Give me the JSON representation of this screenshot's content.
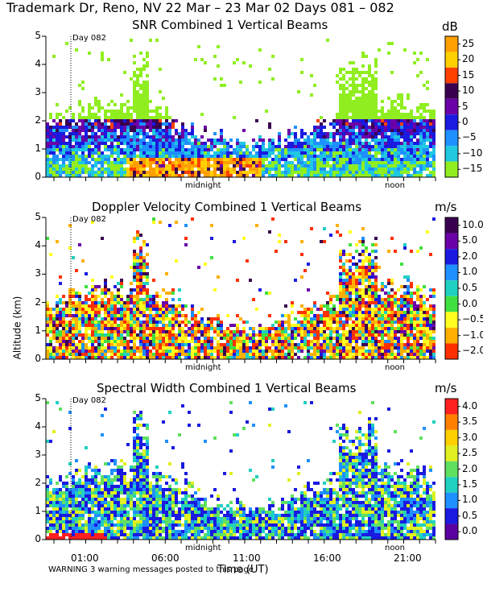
{
  "figure_title": "Trademark Dr, Reno, NV  22 Mar – 23 Mar 02 Days 081 – 082",
  "colors": {
    "background": "#ffffff",
    "text": "#000000"
  },
  "chart_data": [
    {
      "type": "heatmap",
      "title": "SNR Combined 1 Vertical Beams",
      "colorbar_unit": "dB",
      "colorbar_ticks": [
        "25",
        "20",
        "15",
        "10",
        "5",
        "0",
        "−5",
        "−10",
        "−15"
      ],
      "colorbar_colors": [
        "#ffa000",
        "#ffd000",
        "#ff4000",
        "#3a0050",
        "#6a00a8",
        "#1a1ae0",
        "#1e90ff",
        "#20c8e0",
        "#90ee20"
      ],
      "xlim_hours": [
        23,
        48
      ],
      "ylim": [
        0,
        5
      ],
      "yticks": [
        "0",
        "1",
        "2",
        "3",
        "4",
        "5"
      ],
      "time_markers": [
        "midnight",
        "noon"
      ],
      "day_marker": "Day 082",
      "grid": false
    },
    {
      "type": "heatmap",
      "title": "Doppler Velocity Combined 1 Vertical Beams",
      "colorbar_unit": "m/s",
      "colorbar_ticks": [
        "10.0",
        "5.0",
        "2.0",
        "1.0",
        "0.5",
        "0.0",
        "−0.5",
        "−1.0",
        "−2.0"
      ],
      "colorbar_colors": [
        "#3a0050",
        "#6a00a8",
        "#1a1ae0",
        "#1e90ff",
        "#20d0c0",
        "#40e040",
        "#ffff20",
        "#ffb000",
        "#ff3000"
      ],
      "ylim": [
        0,
        5
      ],
      "yticks": [
        "0",
        "1",
        "2",
        "3",
        "4",
        "5"
      ],
      "ylabel": "Altitude (km)",
      "time_markers": [
        "midnight",
        "noon"
      ],
      "day_marker": "Day 082"
    },
    {
      "type": "heatmap",
      "title": "Spectral Width Combined 1 Vertical Beams",
      "colorbar_unit": "m/s",
      "colorbar_ticks": [
        "4.0",
        "3.5",
        "3.0",
        "2.5",
        "2.0",
        "1.5",
        "1.0",
        "0.5",
        "0.0"
      ],
      "colorbar_colors": [
        "#ff2020",
        "#ff8000",
        "#ffd000",
        "#e0f020",
        "#60e060",
        "#20d0c0",
        "#1e90ff",
        "#1a1ae0",
        "#5a00a0"
      ],
      "ylim": [
        0,
        5
      ],
      "yticks": [
        "0",
        "1",
        "2",
        "3",
        "4",
        "5"
      ],
      "time_markers": [
        "midnight",
        "noon"
      ],
      "day_marker": "Day 082",
      "xticks": [
        "01:00",
        "06:00",
        "11:00",
        "16:00",
        "21:00"
      ],
      "xlabel": "Time (UT)"
    }
  ],
  "warning": "WARNING  3 warning messages posted to this page"
}
